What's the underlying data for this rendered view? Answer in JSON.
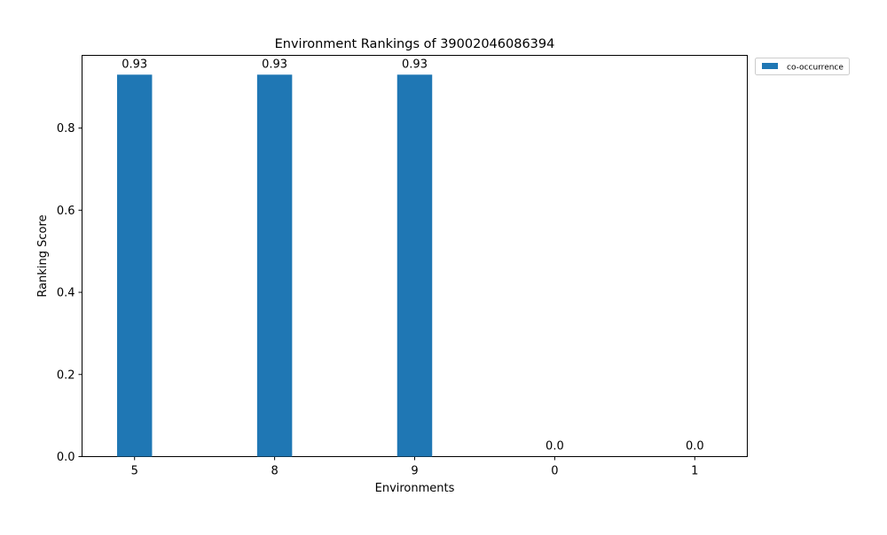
{
  "chart_data": {
    "type": "bar",
    "title": "Environment Rankings of 39002046086394",
    "xlabel": "Environments",
    "ylabel": "Ranking Score",
    "categories": [
      "5",
      "8",
      "9",
      "0",
      "1"
    ],
    "series": [
      {
        "name": "co-occurrence",
        "values": [
          0.93,
          0.93,
          0.93,
          0.0,
          0.0
        ],
        "labels": [
          "0.93",
          "0.93",
          "0.93",
          "0.0",
          "0.0"
        ],
        "color": "#1f77b4"
      }
    ],
    "ylim": [
      0,
      0.977
    ],
    "yticks": [
      0.0,
      0.2,
      0.4,
      0.6,
      0.8
    ],
    "ytick_labels": [
      "0.0",
      "0.2",
      "0.4",
      "0.6",
      "0.8"
    ],
    "grid": false,
    "legend_position": "outside-top-right"
  }
}
